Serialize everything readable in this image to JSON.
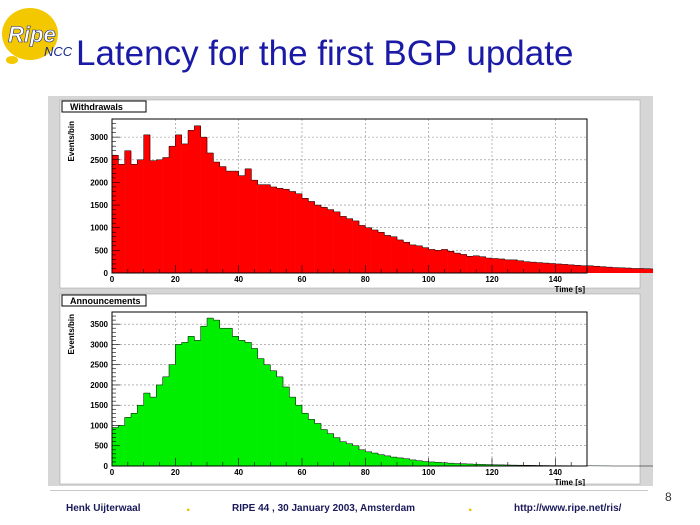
{
  "slide": {
    "title": "Latency for the first BGP update",
    "page_number": "8",
    "logo": {
      "text_main": "Ripe",
      "text_sub": "NCC",
      "bubble_color": "#f3c800",
      "text_color": "#1a2a8a"
    },
    "footer": {
      "author": "Henk Uijterwaal",
      "event": "RIPE 44 ,  30 January 2003, Amsterdam",
      "url": "http://www.ripe.net/ris/",
      "separator": "."
    }
  },
  "chart_data": [
    {
      "type": "bar",
      "title": "Withdrawals",
      "xlabel": "Time [s]",
      "ylabel": "Events/bin",
      "xlim": [
        0,
        150
      ],
      "ylim": [
        0,
        3400
      ],
      "x_ticks": [
        0,
        20,
        40,
        60,
        80,
        100,
        120,
        140
      ],
      "y_ticks": [
        0,
        500,
        1000,
        1500,
        2000,
        2500,
        3000
      ],
      "color": "#ff0000",
      "grid": true,
      "bin_width": 2,
      "values": [
        2600,
        2400,
        2700,
        2400,
        2500,
        3050,
        2480,
        2500,
        2550,
        2800,
        3050,
        2850,
        3150,
        3250,
        3000,
        2650,
        2450,
        2350,
        2250,
        2250,
        2150,
        2300,
        2050,
        1950,
        1950,
        1900,
        1870,
        1850,
        1800,
        1750,
        1650,
        1580,
        1500,
        1450,
        1400,
        1350,
        1250,
        1200,
        1150,
        1050,
        1000,
        950,
        900,
        830,
        800,
        730,
        680,
        620,
        600,
        560,
        520,
        500,
        520,
        480,
        440,
        410,
        370,
        380,
        360,
        330,
        320,
        310,
        290,
        290,
        270,
        250,
        240,
        230,
        220,
        210,
        200,
        190,
        180,
        170,
        160,
        160,
        150,
        140,
        130,
        120,
        115,
        110,
        100,
        100,
        95,
        90,
        85,
        80,
        75,
        70,
        70,
        65,
        60,
        55,
        55,
        50,
        50,
        45,
        40,
        40,
        35,
        35,
        30,
        30,
        28,
        25,
        22,
        20,
        18,
        15,
        12,
        10,
        8,
        6,
        4,
        2,
        1,
        0,
        0,
        0,
        0,
        0,
        0,
        0,
        0,
        0,
        0,
        0,
        0,
        0,
        0,
        0,
        0,
        0,
        0,
        0,
        0,
        0,
        0,
        0,
        0,
        0,
        0,
        0,
        0,
        0,
        0,
        0,
        0,
        0,
        0,
        0,
        0,
        0
      ]
    },
    {
      "type": "bar",
      "title": "Announcements",
      "xlabel": "Time [s]",
      "ylabel": "Events/bin",
      "xlim": [
        0,
        150
      ],
      "ylim": [
        0,
        3800
      ],
      "x_ticks": [
        0,
        20,
        40,
        60,
        80,
        100,
        120,
        140
      ],
      "y_ticks": [
        0,
        500,
        1000,
        1500,
        2000,
        2500,
        3000,
        3500
      ],
      "color": "#00ee00",
      "grid": true,
      "bin_width": 2,
      "values": [
        950,
        1000,
        1200,
        1300,
        1500,
        1800,
        1700,
        2000,
        2200,
        2500,
        3000,
        3050,
        3200,
        3100,
        3450,
        3650,
        3600,
        3400,
        3400,
        3200,
        3100,
        3050,
        2900,
        2650,
        2500,
        2350,
        2200,
        1950,
        1700,
        1500,
        1300,
        1150,
        1050,
        900,
        800,
        700,
        600,
        550,
        500,
        400,
        350,
        320,
        280,
        250,
        220,
        200,
        180,
        150,
        130,
        110,
        100,
        90,
        80,
        70,
        60,
        55,
        50,
        45,
        40,
        35,
        30,
        28,
        25,
        22,
        20,
        18,
        16,
        14,
        12,
        10,
        9,
        8,
        7,
        6,
        5,
        4,
        3,
        2,
        1,
        0,
        0,
        0,
        0,
        0,
        0,
        0,
        0,
        0,
        0,
        0,
        0,
        0,
        0,
        0,
        0,
        0,
        0,
        0,
        0,
        0,
        0,
        0,
        0,
        0,
        0,
        0,
        0,
        0,
        0,
        0,
        0,
        0,
        0,
        0,
        0,
        0,
        0,
        0,
        0,
        0,
        0,
        0,
        0,
        0,
        0,
        0,
        0,
        0,
        0,
        0,
        0,
        0,
        0,
        0,
        0,
        0,
        0,
        0,
        0,
        0,
        0,
        0,
        0,
        0,
        0,
        0,
        0,
        0,
        0,
        0,
        0,
        0,
        0,
        0,
        0,
        0
      ]
    }
  ]
}
